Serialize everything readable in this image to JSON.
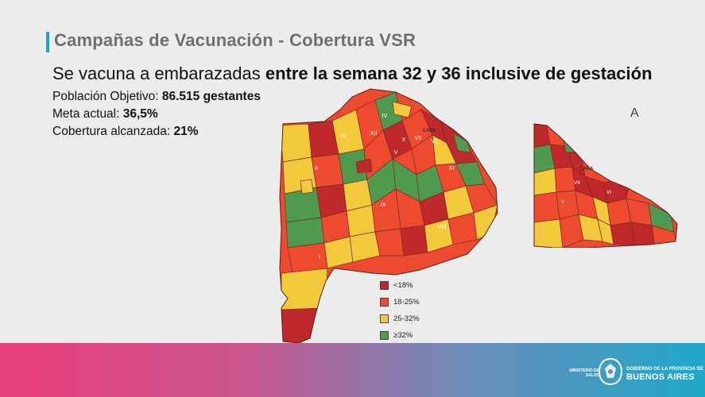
{
  "slide": {
    "title": "Campañas de Vacunación - Cobertura VSR",
    "headline_normal": "Se vacuna a embarazadas ",
    "headline_bold": "entre la semana 32 y 36 inclusive de gestación",
    "stats": [
      {
        "label": "Población Objetivo: ",
        "value": "86.515 gestantes"
      },
      {
        "label": "Meta actual: ",
        "value": "36,5%"
      },
      {
        "label": "Cobertura alcanzada: ",
        "value": "21%"
      }
    ]
  },
  "map": {
    "region_labels": [
      "IV",
      "XII",
      "III",
      "II",
      "X",
      "XI",
      "I",
      "IX",
      "VI",
      "VII",
      "V",
      "VIII",
      "CABA"
    ],
    "inset_labels": [
      "CABA",
      "VII",
      "V",
      "VI"
    ],
    "north_symbol": "A"
  },
  "legend": {
    "items": [
      {
        "label": "<18%",
        "color": "#c0292b"
      },
      {
        "label": "18-25%",
        "color": "#ee4a2f"
      },
      {
        "label": "25-32%",
        "color": "#f1c93a"
      },
      {
        "label": "≥32%",
        "color": "#4e9b50"
      }
    ]
  },
  "footer": {
    "ministry_label": "MINISTERIO DE SALUD",
    "gov_sub": "GOBIERNO DE LA PROVINCIA DE",
    "gov_main": "BUENOS AIRES"
  }
}
